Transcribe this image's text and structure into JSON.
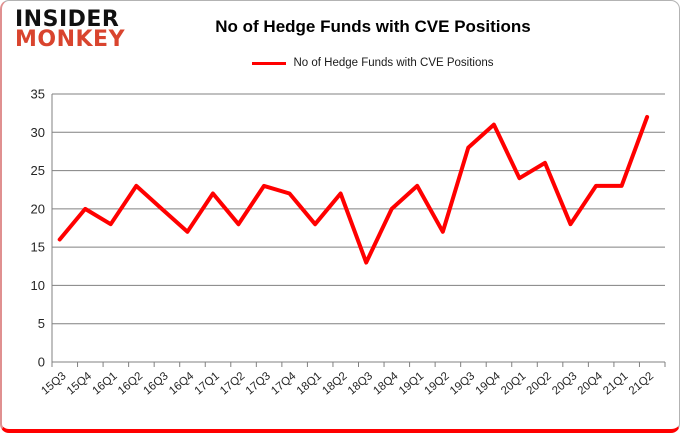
{
  "logo": {
    "line1": "INSIDER",
    "line2": "MONKEY",
    "color": "#d9442e"
  },
  "header": {
    "title": "No of Hedge Funds with CVE Positions"
  },
  "legend": {
    "label": "No of Hedge Funds with CVE Positions",
    "color": "#ff0000"
  },
  "chart_data": {
    "type": "line",
    "title": "No of Hedge Funds with CVE Positions",
    "categories": [
      "15Q3",
      "15Q4",
      "16Q1",
      "16Q2",
      "16Q3",
      "16Q4",
      "17Q1",
      "17Q2",
      "17Q3",
      "17Q4",
      "18Q1",
      "18Q2",
      "18Q3",
      "18Q4",
      "19Q1",
      "19Q2",
      "19Q3",
      "19Q4",
      "20Q1",
      "20Q2",
      "20Q3",
      "20Q4",
      "21Q1",
      "21Q2"
    ],
    "values": [
      16,
      20,
      18,
      23,
      20,
      17,
      22,
      18,
      23,
      22,
      18,
      22,
      13,
      20,
      23,
      17,
      28,
      31,
      24,
      26,
      18,
      23,
      23,
      32
    ],
    "xlabel": "",
    "ylabel": "",
    "ylim": [
      0,
      35
    ],
    "ytick_step": 5,
    "yticks": [
      0,
      5,
      10,
      15,
      20,
      25,
      30,
      35
    ],
    "grid": true,
    "legend_position": "top",
    "line_color": "#ff0000",
    "line_width": 4,
    "gridline_color": "#808080",
    "axis_color": "#808080",
    "tick_label_color": "#262626"
  }
}
